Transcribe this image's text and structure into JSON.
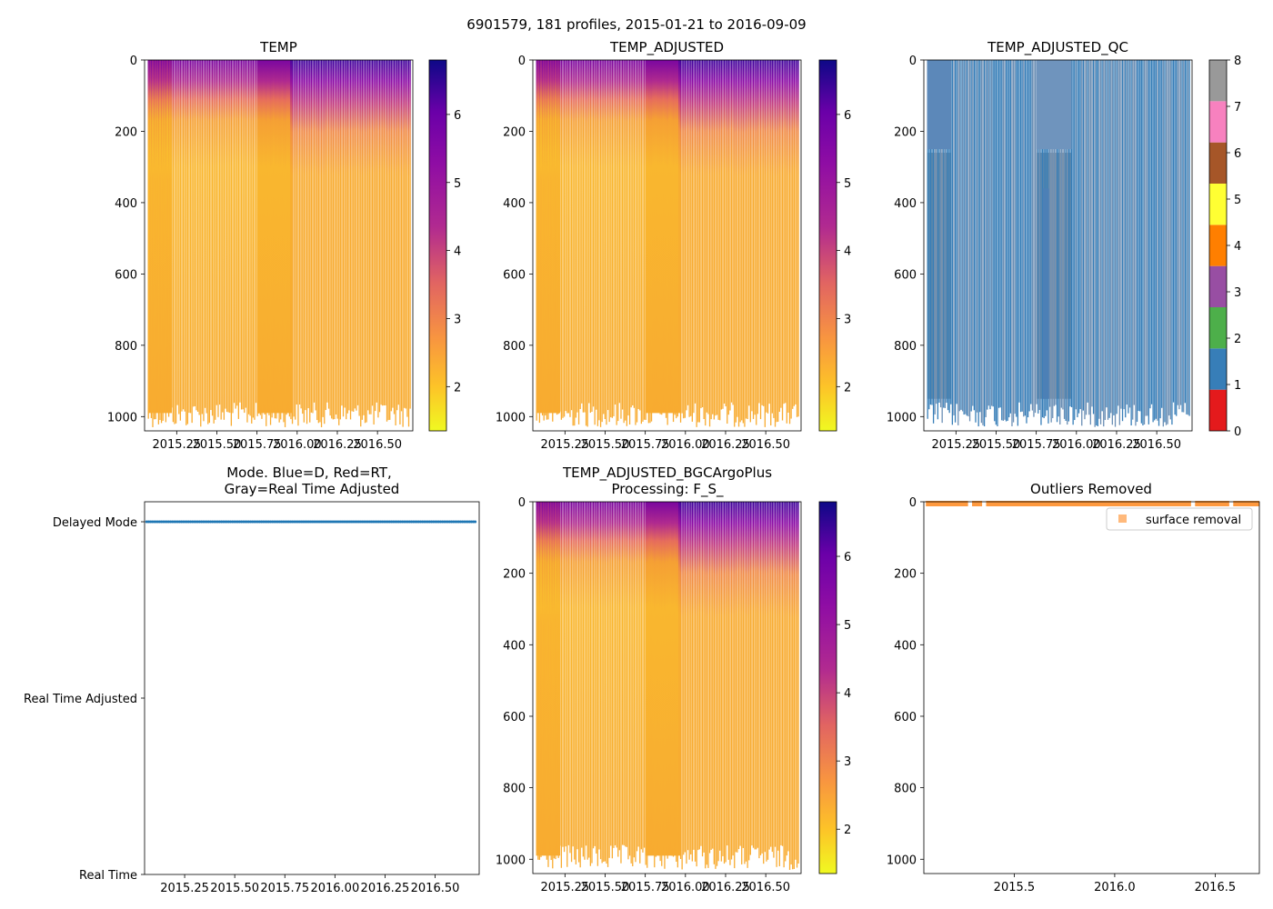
{
  "suptitle": "6901579, 181 profiles, 2015-01-21 to 2016-09-09",
  "chart_data": [
    {
      "id": "temp",
      "type": "heatmap",
      "title": "TEMP",
      "xlim": [
        2015.05,
        2016.72
      ],
      "ylim": [
        0,
        1040
      ],
      "xticks": [
        2015.25,
        2015.5,
        2015.75,
        2016.0,
        2016.25,
        2016.5
      ],
      "xticklabels": [
        "2015.25",
        "2015.50",
        "2015.75",
        "2016.00",
        "2016.25",
        "2016.50"
      ],
      "yticks": [
        0,
        200,
        400,
        600,
        800,
        1000
      ],
      "yticklabels": [
        "0",
        "200",
        "400",
        "600",
        "800",
        "1000"
      ],
      "colorbar": {
        "cmap": "plasma_r",
        "vmin": 1.35,
        "vmax": 6.8,
        "ticks": [
          2,
          3,
          4,
          5,
          6
        ],
        "ticklabels": [
          "2",
          "3",
          "4",
          "5",
          "6"
        ]
      },
      "date_range": [
        "2015-01-21",
        "2016-09-09"
      ],
      "profiles": 181
    },
    {
      "id": "temp_adj",
      "type": "heatmap",
      "title": "TEMP_ADJUSTED",
      "xlim": [
        2015.05,
        2016.72
      ],
      "ylim": [
        0,
        1040
      ],
      "xticks": [
        2015.25,
        2015.5,
        2015.75,
        2016.0,
        2016.25,
        2016.5
      ],
      "xticklabels": [
        "2015.25",
        "2015.50",
        "2015.75",
        "2016.00",
        "2016.25",
        "2016.50"
      ],
      "yticks": [
        0,
        200,
        400,
        600,
        800,
        1000
      ],
      "yticklabels": [
        "0",
        "200",
        "400",
        "600",
        "800",
        "1000"
      ],
      "colorbar": {
        "cmap": "plasma_r",
        "vmin": 1.35,
        "vmax": 6.8,
        "ticks": [
          2,
          3,
          4,
          5,
          6
        ],
        "ticklabels": [
          "2",
          "3",
          "4",
          "5",
          "6"
        ]
      }
    },
    {
      "id": "temp_qc",
      "type": "heatmap",
      "title": "TEMP_ADJUSTED_QC",
      "xlim": [
        2015.05,
        2016.72
      ],
      "ylim": [
        0,
        1040
      ],
      "xticks": [
        2015.25,
        2015.5,
        2015.75,
        2016.0,
        2016.25,
        2016.5
      ],
      "xticklabels": [
        "2015.25",
        "2015.50",
        "2015.75",
        "2016.00",
        "2016.25",
        "2016.50"
      ],
      "yticks": [
        0,
        200,
        400,
        600,
        800,
        1000
      ],
      "yticklabels": [
        "0",
        "200",
        "400",
        "600",
        "800",
        "1000"
      ],
      "colorbar": {
        "discrete": true,
        "vmin": 0,
        "vmax": 8,
        "ticks": [
          0,
          1,
          2,
          3,
          4,
          5,
          6,
          7,
          8
        ],
        "ticklabels": [
          "0",
          "1",
          "2",
          "3",
          "4",
          "5",
          "6",
          "7",
          "8"
        ],
        "colors": [
          "#e41a1c",
          "#377eb8",
          "#4daf4a",
          "#984ea3",
          "#ff7f00",
          "#ffff33",
          "#a65628",
          "#f781bf",
          "#999999"
        ]
      }
    },
    {
      "id": "mode",
      "type": "scatter",
      "title": "Mode. Blue=D, Red=RT,",
      "title2": "Gray=Real Time Adjusted",
      "xlim": [
        2015.05,
        2016.72
      ],
      "ylim": [
        0,
        2
      ],
      "xticks": [
        2015.25,
        2015.5,
        2015.75,
        2016.0,
        2016.25,
        2016.5
      ],
      "xticklabels": [
        "2015.25",
        "2015.50",
        "2015.75",
        "2016.00",
        "2016.25",
        "2016.50"
      ],
      "ycategories": [
        "Delayed Mode",
        "Real Time Adjusted",
        "Real Time"
      ],
      "series": [
        {
          "name": "Delayed Mode",
          "y": "Delayed Mode",
          "color": "#1f77b4"
        }
      ]
    },
    {
      "id": "temp_bgc",
      "type": "heatmap",
      "title": "TEMP_ADJUSTED_BGCArgoPlus",
      "title2": "Processing: F_S_",
      "xlim": [
        2015.05,
        2016.72
      ],
      "ylim": [
        0,
        1040
      ],
      "xticks": [
        2015.25,
        2015.5,
        2015.75,
        2016.0,
        2016.25,
        2016.5
      ],
      "xticklabels": [
        "2015.25",
        "2015.50",
        "2015.75",
        "2016.00",
        "2016.25",
        "2016.50"
      ],
      "yticks": [
        0,
        200,
        400,
        600,
        800,
        1000
      ],
      "yticklabels": [
        "0",
        "200",
        "400",
        "600",
        "800",
        "1000"
      ],
      "colorbar": {
        "cmap": "plasma_r",
        "vmin": 1.35,
        "vmax": 6.8,
        "ticks": [
          2,
          3,
          4,
          5,
          6
        ],
        "ticklabels": [
          "2",
          "3",
          "4",
          "5",
          "6"
        ]
      }
    },
    {
      "id": "outliers",
      "type": "scatter",
      "title": "Outliers Removed",
      "xlim": [
        2015.05,
        2016.72
      ],
      "ylim": [
        0,
        1040
      ],
      "xticks": [
        2015.5,
        2016.0,
        2016.5
      ],
      "xticklabels": [
        "2015.5",
        "2016.0",
        "2016.5"
      ],
      "yticks": [
        0,
        200,
        400,
        600,
        800,
        1000
      ],
      "yticklabels": [
        "0",
        "200",
        "400",
        "600",
        "800",
        "1000"
      ],
      "legend": {
        "label": "surface removal",
        "color": "#ff7f0e",
        "placement": "top-right"
      },
      "series": [
        {
          "name": "surface removal",
          "depth_range": [
            0,
            8
          ],
          "color": "#ff7f0e"
        }
      ]
    }
  ]
}
